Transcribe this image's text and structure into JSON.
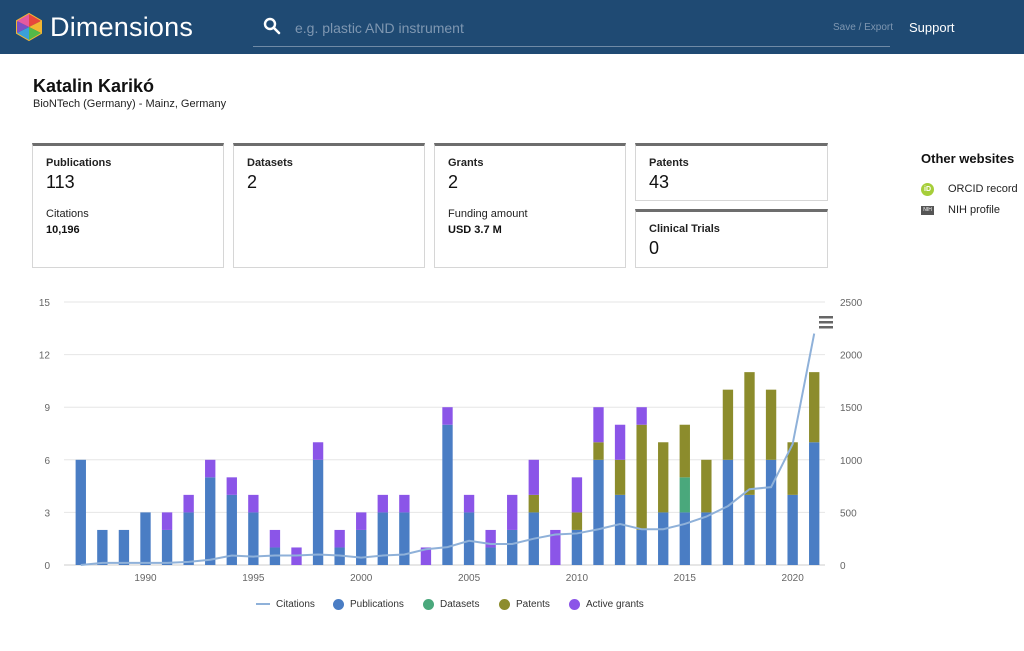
{
  "app": {
    "name": "Dimensions"
  },
  "search": {
    "placeholder": "e.g. plastic AND instrument",
    "value": ""
  },
  "header": {
    "save_export": "Save / Export",
    "support": "Support"
  },
  "profile": {
    "name": "Katalin Karikó",
    "affiliation": "BioNTech (Germany) - Mainz, Germany"
  },
  "cards": {
    "publications": {
      "label": "Publications",
      "value": "113",
      "sub_label": "Citations",
      "sub_value": "10,196"
    },
    "datasets": {
      "label": "Datasets",
      "value": "2"
    },
    "grants": {
      "label": "Grants",
      "value": "2",
      "sub_label": "Funding amount",
      "sub_value": "USD 3.7 M"
    },
    "patents": {
      "label": "Patents",
      "value": "43"
    },
    "clinical_trials": {
      "label": "Clinical Trials",
      "value": "0"
    }
  },
  "other_websites": {
    "title": "Other websites",
    "orcid": "ORCID record",
    "nih": "NIH profile"
  },
  "colors": {
    "header": "#1f4a73",
    "publications": "#4a7dc4",
    "datasets": "#4aa87c",
    "patents": "#8c8c2c",
    "grants": "#8b55e8",
    "citations": "#8fb1d9"
  },
  "chart_data": {
    "type": "bar",
    "stacked": true,
    "x": [
      1987,
      1988,
      1989,
      1990,
      1991,
      1992,
      1993,
      1994,
      1995,
      1996,
      1997,
      1998,
      1999,
      2000,
      2001,
      2002,
      2003,
      2004,
      2005,
      2006,
      2007,
      2008,
      2009,
      2010,
      2011,
      2012,
      2013,
      2014,
      2015,
      2016,
      2017,
      2018,
      2019,
      2020,
      2021
    ],
    "xticks": [
      1990,
      1995,
      2000,
      2005,
      2010,
      2015,
      2020
    ],
    "left_ticks": [
      0,
      3,
      6,
      9,
      12,
      15
    ],
    "right_ticks": [
      0,
      500,
      1000,
      1500,
      2000,
      2500
    ],
    "ylim": [
      0,
      15
    ],
    "y2lim": [
      0,
      2500
    ],
    "grid": true,
    "legend_position": "bottom",
    "series": [
      {
        "name": "Publications",
        "values": [
          6,
          2,
          2,
          3,
          2,
          3,
          5,
          4,
          3,
          1,
          0,
          6,
          1,
          2,
          3,
          3,
          0,
          8,
          3,
          1,
          2,
          3,
          0,
          2,
          6,
          4,
          2,
          3,
          3,
          3,
          6,
          4,
          6,
          4,
          7
        ]
      },
      {
        "name": "Datasets",
        "values": [
          0,
          0,
          0,
          0,
          0,
          0,
          0,
          0,
          0,
          0,
          0,
          0,
          0,
          0,
          0,
          0,
          0,
          0,
          0,
          0,
          0,
          0,
          0,
          0,
          0,
          0,
          0,
          0,
          2,
          0,
          0,
          0,
          0,
          0,
          0
        ]
      },
      {
        "name": "Patents",
        "values": [
          0,
          0,
          0,
          0,
          0,
          0,
          0,
          0,
          0,
          0,
          0,
          0,
          0,
          0,
          0,
          0,
          0,
          0,
          0,
          0,
          0,
          1,
          0,
          1,
          1,
          2,
          6,
          4,
          3,
          3,
          4,
          7,
          4,
          3,
          4
        ]
      },
      {
        "name": "Active grants",
        "values": [
          0,
          0,
          0,
          0,
          1,
          1,
          1,
          1,
          1,
          1,
          1,
          1,
          1,
          1,
          1,
          1,
          1,
          1,
          1,
          1,
          2,
          2,
          2,
          2,
          2,
          2,
          1,
          0,
          0,
          0,
          0,
          0,
          0,
          0,
          0
        ]
      }
    ],
    "line_series": {
      "name": "Citations",
      "axis": "right",
      "values": [
        0,
        20,
        20,
        20,
        20,
        30,
        50,
        90,
        80,
        90,
        90,
        100,
        90,
        70,
        90,
        100,
        150,
        170,
        230,
        200,
        200,
        250,
        290,
        300,
        340,
        390,
        340,
        340,
        390,
        460,
        560,
        720,
        740,
        1150,
        2200
      ]
    }
  }
}
